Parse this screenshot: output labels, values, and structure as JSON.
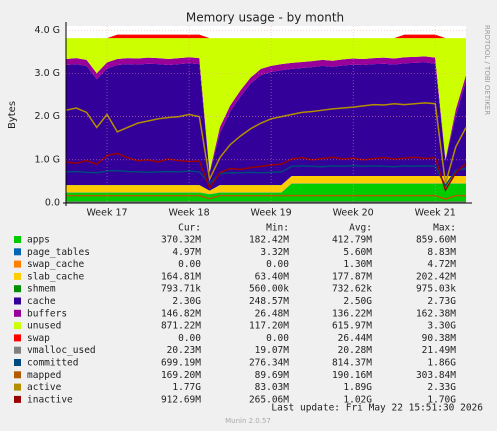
{
  "chart_data": {
    "type": "area",
    "title": "Memory usage - by month",
    "y_label": "Bytes",
    "side_text": "RRDTOOL / TOBI OETIKER",
    "legend_columns": [
      "Cur:",
      "Min:",
      "Avg:",
      "Max:"
    ],
    "footer": "Last update: Fri May 22 15:51:30 2026",
    "version": "Munin 2.0.57",
    "grid": true,
    "ylim": [
      0,
      4.1
    ],
    "yticks": [
      {
        "value": 0,
        "label": "0.0"
      },
      {
        "value": 1,
        "label": "1.0 G"
      },
      {
        "value": 2,
        "label": "2.0 G"
      },
      {
        "value": 3,
        "label": "3.0 G"
      },
      {
        "value": 4,
        "label": "4.0 G"
      }
    ],
    "categories": [
      null,
      null,
      null,
      null,
      "Week 17",
      null,
      null,
      null,
      null,
      null,
      null,
      null,
      "Week 18",
      null,
      null,
      null,
      null,
      null,
      null,
      null,
      "Week 19",
      null,
      null,
      null,
      null,
      null,
      null,
      null,
      "Week 20",
      null,
      null,
      null,
      null,
      null,
      null,
      null,
      "Week 21",
      null,
      null,
      null
    ],
    "series": [
      {
        "name": "apps",
        "color": "#00cc00",
        "style": "area",
        "stats": [
          "370.32M",
          "182.42M",
          "412.79M",
          "859.60M"
        ],
        "values": [
          0.24,
          0.24,
          0.24,
          0.24,
          0.24,
          0.24,
          0.24,
          0.24,
          0.24,
          0.24,
          0.24,
          0.24,
          0.24,
          0.24,
          0.2,
          0.24,
          0.24,
          0.24,
          0.24,
          0.24,
          0.24,
          0.24,
          0.45,
          0.45,
          0.45,
          0.45,
          0.45,
          0.45,
          0.45,
          0.45,
          0.45,
          0.45,
          0.45,
          0.45,
          0.45,
          0.45,
          0.45,
          0.45,
          0.45,
          0.45
        ]
      },
      {
        "name": "page_tables",
        "color": "#0066b3",
        "style": "area",
        "stats": [
          "4.97M",
          "3.32M",
          "5.60M",
          "8.83M"
        ],
        "values": [
          0.005,
          0.005,
          0.005,
          0.005,
          0.005,
          0.005,
          0.005,
          0.005,
          0.005,
          0.005,
          0.005,
          0.005,
          0.005,
          0.005,
          0.005,
          0.005,
          0.005,
          0.005,
          0.005,
          0.005,
          0.005,
          0.005,
          0.005,
          0.005,
          0.005,
          0.005,
          0.005,
          0.005,
          0.005,
          0.005,
          0.005,
          0.005,
          0.005,
          0.005,
          0.005,
          0.005,
          0.005,
          0.005,
          0.005,
          0.005
        ]
      },
      {
        "name": "swap_cache",
        "color": "#ff8000",
        "style": "area",
        "stats": [
          "0.00",
          "0.00",
          "1.30M",
          "4.72M"
        ],
        "values": [
          0,
          0,
          0,
          0,
          0,
          0,
          0,
          0,
          0,
          0,
          0,
          0,
          0,
          0,
          0,
          0,
          0,
          0,
          0,
          0,
          0,
          0,
          0,
          0,
          0,
          0,
          0,
          0,
          0,
          0,
          0,
          0,
          0,
          0,
          0,
          0,
          0,
          0,
          0,
          0
        ]
      },
      {
        "name": "slab_cache",
        "color": "#ffcc00",
        "style": "area",
        "stats": [
          "164.81M",
          "63.40M",
          "177.87M",
          "202.42M"
        ],
        "values": [
          0.17,
          0.17,
          0.17,
          0.17,
          0.17,
          0.17,
          0.17,
          0.17,
          0.17,
          0.17,
          0.17,
          0.17,
          0.17,
          0.17,
          0.08,
          0.17,
          0.17,
          0.17,
          0.17,
          0.17,
          0.17,
          0.17,
          0.17,
          0.17,
          0.17,
          0.17,
          0.17,
          0.17,
          0.17,
          0.17,
          0.17,
          0.17,
          0.17,
          0.17,
          0.17,
          0.17,
          0.17,
          0.17,
          0.17,
          0.17
        ]
      },
      {
        "name": "shmem",
        "color": "#008f00",
        "style": "area",
        "stats": [
          "793.71k",
          "560.00k",
          "732.62k",
          "975.03k"
        ],
        "values": [
          0.001,
          0.001,
          0.001,
          0.001,
          0.001,
          0.001,
          0.001,
          0.001,
          0.001,
          0.001,
          0.001,
          0.001,
          0.001,
          0.001,
          0.001,
          0.001,
          0.001,
          0.001,
          0.001,
          0.001,
          0.001,
          0.001,
          0.001,
          0.001,
          0.001,
          0.001,
          0.001,
          0.001,
          0.001,
          0.001,
          0.001,
          0.001,
          0.001,
          0.001,
          0.001,
          0.001,
          0.001,
          0.001,
          0.001,
          0.001
        ]
      },
      {
        "name": "cache",
        "color": "#330099",
        "style": "area",
        "stats": [
          "2.30G",
          "248.57M",
          "2.50G",
          "2.73G"
        ],
        "values": [
          2.78,
          2.8,
          2.76,
          2.45,
          2.7,
          2.78,
          2.8,
          2.79,
          2.81,
          2.8,
          2.78,
          2.8,
          2.82,
          2.8,
          0.4,
          1.2,
          1.7,
          2.05,
          2.35,
          2.55,
          2.62,
          2.66,
          2.48,
          2.5,
          2.52,
          2.55,
          2.53,
          2.56,
          2.58,
          2.57,
          2.59,
          2.6,
          2.58,
          2.61,
          2.62,
          2.63,
          2.6,
          0.35,
          1.4,
          2.2
        ]
      },
      {
        "name": "buffers",
        "color": "#990099",
        "style": "area",
        "stats": [
          "146.82M",
          "26.48M",
          "136.22M",
          "162.38M"
        ],
        "values": [
          0.14,
          0.14,
          0.14,
          0.14,
          0.14,
          0.14,
          0.14,
          0.14,
          0.14,
          0.14,
          0.14,
          0.14,
          0.14,
          0.14,
          0.03,
          0.14,
          0.14,
          0.14,
          0.14,
          0.14,
          0.14,
          0.14,
          0.14,
          0.14,
          0.14,
          0.14,
          0.14,
          0.14,
          0.14,
          0.14,
          0.14,
          0.14,
          0.14,
          0.14,
          0.14,
          0.14,
          0.14,
          0.03,
          0.14,
          0.14
        ]
      },
      {
        "name": "unused",
        "color": "#ccff00",
        "style": "area",
        "stats": [
          "871.22M",
          "117.20M",
          "615.97M",
          "3.30G"
        ],
        "values": [
          0.484,
          0.464,
          0.504,
          0.814,
          0.564,
          0.484,
          0.464,
          0.474,
          0.454,
          0.464,
          0.484,
          0.464,
          0.444,
          0.464,
          3.104,
          2.064,
          1.564,
          1.214,
          0.914,
          0.714,
          0.644,
          0.604,
          0.574,
          0.554,
          0.534,
          0.504,
          0.524,
          0.494,
          0.474,
          0.484,
          0.464,
          0.454,
          0.474,
          0.444,
          0.434,
          0.424,
          0.454,
          2.814,
          1.654,
          0.854
        ]
      },
      {
        "name": "swap",
        "color": "#ff0000",
        "style": "area",
        "stats": [
          "0.00",
          "0.00",
          "26.44M",
          "90.38M"
        ],
        "values": [
          0,
          0,
          0,
          0,
          0,
          0.08,
          0.08,
          0.08,
          0.08,
          0.08,
          0.08,
          0.08,
          0.08,
          0.08,
          0,
          0,
          0,
          0,
          0,
          0,
          0,
          0,
          0,
          0,
          0,
          0,
          0,
          0,
          0,
          0,
          0,
          0,
          0,
          0.08,
          0.08,
          0.08,
          0.08,
          0,
          0,
          0
        ]
      },
      {
        "name": "vmalloc_used",
        "color": "#808080",
        "style": "line",
        "stats": [
          "20.23M",
          "19.07M",
          "20.28M",
          "21.49M"
        ],
        "values": [
          0.02,
          0.02,
          0.02,
          0.02,
          0.02,
          0.02,
          0.02,
          0.02,
          0.02,
          0.02,
          0.02,
          0.02,
          0.02,
          0.02,
          0.02,
          0.02,
          0.02,
          0.02,
          0.02,
          0.02,
          0.02,
          0.02,
          0.02,
          0.02,
          0.02,
          0.02,
          0.02,
          0.02,
          0.02,
          0.02,
          0.02,
          0.02,
          0.02,
          0.02,
          0.02,
          0.02,
          0.02,
          0.02,
          0.02,
          0.02
        ]
      },
      {
        "name": "committed",
        "color": "#00487d",
        "style": "line",
        "stats": [
          "699.19M",
          "276.34M",
          "814.37M",
          "1.86G"
        ],
        "values": [
          0.72,
          0.73,
          0.71,
          0.7,
          0.74,
          0.75,
          0.73,
          0.72,
          0.71,
          0.72,
          0.73,
          0.72,
          0.74,
          0.72,
          0.45,
          0.68,
          0.7,
          0.7,
          0.71,
          0.7,
          0.71,
          0.72,
          0.85,
          0.86,
          0.85,
          0.84,
          0.86,
          0.85,
          0.87,
          0.85,
          0.86,
          0.85,
          0.84,
          0.86,
          0.85,
          0.86,
          0.85,
          0.4,
          0.75,
          0.8
        ]
      },
      {
        "name": "mapped",
        "color": "#b35a00",
        "style": "line",
        "stats": [
          "169.20M",
          "89.69M",
          "190.16M",
          "303.84M"
        ],
        "values": [
          0.17,
          0.17,
          0.17,
          0.17,
          0.17,
          0.17,
          0.17,
          0.17,
          0.17,
          0.17,
          0.17,
          0.17,
          0.17,
          0.17,
          0.1,
          0.17,
          0.17,
          0.17,
          0.17,
          0.17,
          0.17,
          0.17,
          0.17,
          0.17,
          0.17,
          0.17,
          0.17,
          0.17,
          0.17,
          0.17,
          0.17,
          0.17,
          0.17,
          0.17,
          0.17,
          0.17,
          0.17,
          0.09,
          0.17,
          0.17
        ]
      },
      {
        "name": "active",
        "color": "#b38f00",
        "style": "line",
        "stats": [
          "1.77G",
          "83.03M",
          "1.89G",
          "2.33G"
        ],
        "values": [
          2.15,
          2.2,
          2.1,
          1.75,
          2.05,
          1.65,
          1.75,
          1.85,
          1.9,
          1.95,
          1.98,
          2.0,
          2.05,
          2.0,
          0.55,
          1.05,
          1.35,
          1.55,
          1.72,
          1.85,
          1.95,
          2.0,
          2.05,
          2.1,
          2.12,
          2.15,
          2.18,
          2.2,
          2.22,
          2.25,
          2.28,
          2.27,
          2.3,
          2.28,
          2.3,
          2.32,
          2.3,
          0.45,
          1.3,
          1.75
        ]
      },
      {
        "name": "inactive",
        "color": "#990000",
        "style": "line",
        "stats": [
          "912.69M",
          "265.06M",
          "1.02G",
          "1.70G"
        ],
        "values": [
          0.95,
          0.92,
          0.98,
          0.9,
          1.1,
          1.15,
          1.05,
          0.98,
          1.0,
          0.95,
          1.02,
          0.98,
          0.96,
          0.97,
          0.35,
          0.7,
          0.8,
          0.78,
          0.82,
          0.85,
          0.88,
          0.9,
          1.02,
          1.05,
          1.0,
          1.03,
          1.06,
          1.02,
          1.04,
          1.0,
          1.03,
          1.05,
          1.02,
          1.04,
          1.06,
          1.03,
          1.05,
          0.3,
          0.7,
          0.92
        ]
      }
    ]
  }
}
